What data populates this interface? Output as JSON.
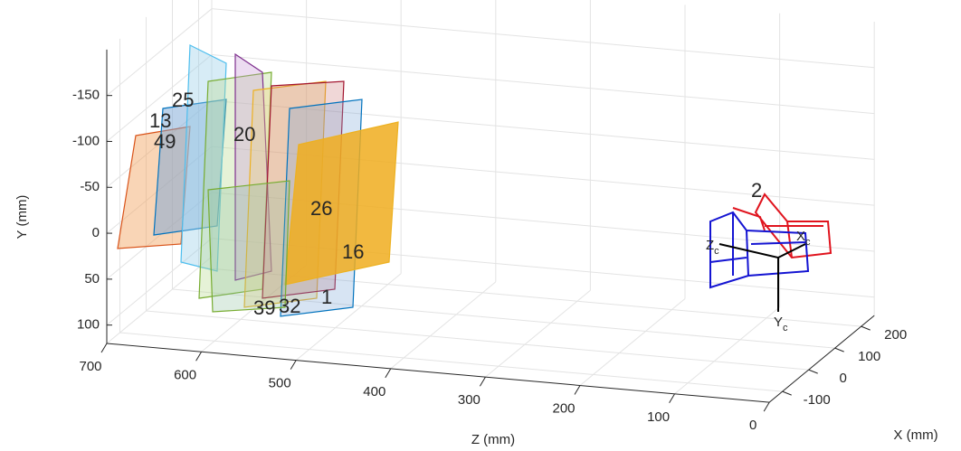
{
  "chart_data": {
    "type": "extrinsics3d",
    "x_label": "X (mm)",
    "y_label": "Y (mm)",
    "z_label": "Z (mm)",
    "xlim": [
      -150,
      250
    ],
    "ylim": [
      -200,
      120
    ],
    "zlim": [
      0,
      700
    ],
    "xticks": [
      -100,
      0,
      100,
      200
    ],
    "yticks": [
      -150,
      -100,
      -50,
      0,
      50,
      100
    ],
    "zticks": [
      0,
      100,
      200,
      300,
      400,
      500,
      600,
      700
    ],
    "grid": true,
    "annotations": [
      "25",
      "13",
      "49",
      "20",
      "26",
      "16",
      "39",
      "32",
      "1",
      "2"
    ],
    "camera_axes": [
      {
        "name": "Z",
        "sub": "c"
      },
      {
        "name": "X",
        "sub": "c"
      },
      {
        "name": "Y",
        "sub": "c"
      }
    ]
  }
}
